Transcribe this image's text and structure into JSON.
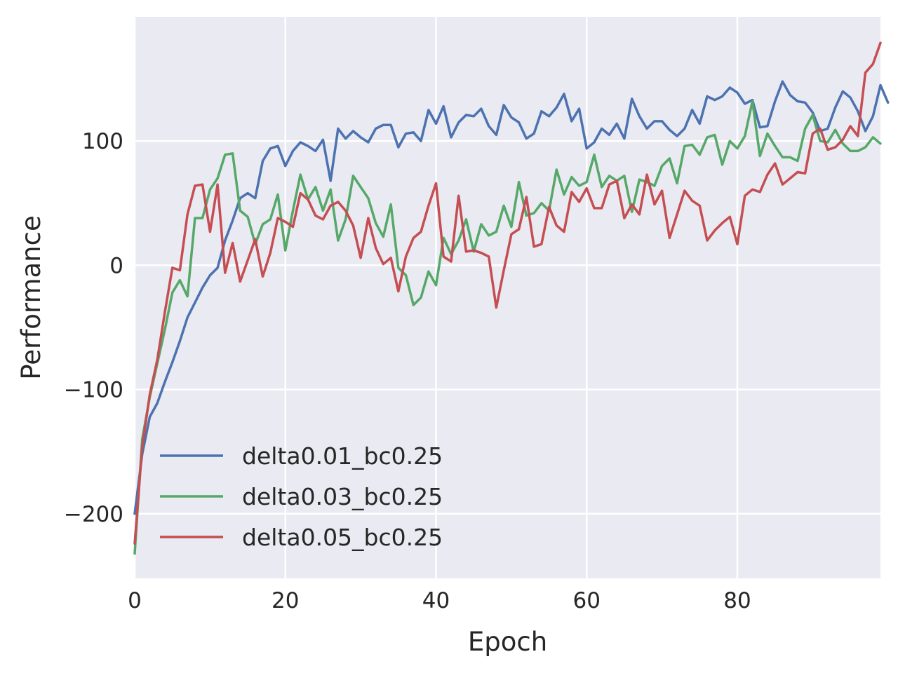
{
  "chart_data": {
    "type": "line",
    "title": "",
    "xlabel": "Epoch",
    "ylabel": "Performance",
    "xlim": [
      0,
      99
    ],
    "ylim": [
      -252,
      200
    ],
    "xticks": [
      0,
      20,
      40,
      60,
      80
    ],
    "yticks": [
      -200,
      -100,
      0,
      100
    ],
    "xtick_labels": [
      "0",
      "20",
      "40",
      "60",
      "80"
    ],
    "ytick_labels": [
      "−200",
      "−100",
      "0",
      "100"
    ],
    "grid": true,
    "legend_position": "lower-left",
    "background": "#eaeaf2",
    "series": [
      {
        "name": "delta0.01_bc0.25",
        "color": "#4c72b0",
        "values": [
          -200,
          -152,
          -122,
          -111,
          -94,
          -78,
          -61,
          -42,
          -30,
          -18,
          -8,
          -2,
          20,
          36,
          54,
          58,
          54,
          84,
          94,
          96,
          80,
          92,
          99,
          96,
          92,
          101,
          68,
          110,
          102,
          108,
          103,
          99,
          110,
          113,
          113,
          95,
          106,
          107,
          100,
          125,
          114,
          128,
          103,
          115,
          121,
          120,
          126,
          112,
          105,
          129,
          119,
          115,
          102,
          106,
          124,
          120,
          127,
          138,
          116,
          126,
          94,
          99,
          110,
          105,
          114,
          102,
          134,
          120,
          110,
          116,
          116,
          109,
          104,
          110,
          125,
          114,
          136,
          133,
          136,
          143,
          139,
          130,
          133,
          111,
          112,
          132,
          148,
          137,
          132,
          131,
          123,
          108,
          110,
          127,
          140,
          135,
          124,
          108,
          120,
          145,
          131
        ]
      },
      {
        "name": "delta0.03_bc0.25",
        "color": "#55a868",
        "values": [
          -232,
          -140,
          -106,
          -79,
          -52,
          -22,
          -12,
          -25,
          38,
          38,
          61,
          70,
          89,
          90,
          44,
          39,
          17,
          33,
          37,
          57,
          12,
          44,
          73,
          53,
          63,
          44,
          61,
          20,
          37,
          72,
          63,
          54,
          34,
          23,
          49,
          -2,
          -8,
          -32,
          -26,
          -5,
          -16,
          22,
          9,
          20,
          37,
          11,
          33,
          24,
          27,
          48,
          31,
          67,
          40,
          42,
          50,
          44,
          77,
          57,
          71,
          64,
          67,
          89,
          63,
          72,
          68,
          72,
          43,
          69,
          67,
          64,
          80,
          86,
          66,
          96,
          97,
          89,
          103,
          105,
          81,
          100,
          94,
          104,
          132,
          88,
          106,
          96,
          87,
          87,
          84,
          110,
          121,
          100,
          99,
          109,
          98,
          92,
          92,
          95,
          103,
          98
        ]
      },
      {
        "name": "delta0.05_bc0.25",
        "color": "#c44e52",
        "values": [
          -224,
          -146,
          -104,
          -76,
          -38,
          -2,
          -4,
          41,
          64,
          65,
          27,
          65,
          -6,
          18,
          -13,
          4,
          21,
          -9,
          10,
          38,
          35,
          31,
          58,
          53,
          40,
          37,
          48,
          51,
          44,
          32,
          6,
          38,
          14,
          1,
          6,
          -21,
          7,
          22,
          27,
          48,
          66,
          7,
          3,
          56,
          11,
          12,
          10,
          7,
          -34,
          -4,
          25,
          29,
          55,
          15,
          17,
          47,
          32,
          27,
          59,
          51,
          62,
          46,
          46,
          65,
          68,
          38,
          49,
          41,
          73,
          49,
          60,
          22,
          41,
          60,
          52,
          48,
          20,
          28,
          34,
          39,
          17,
          56,
          61,
          59,
          73,
          82,
          65,
          70,
          75,
          74,
          106,
          110,
          93,
          95,
          101,
          112,
          104,
          155,
          162,
          179
        ]
      }
    ]
  }
}
